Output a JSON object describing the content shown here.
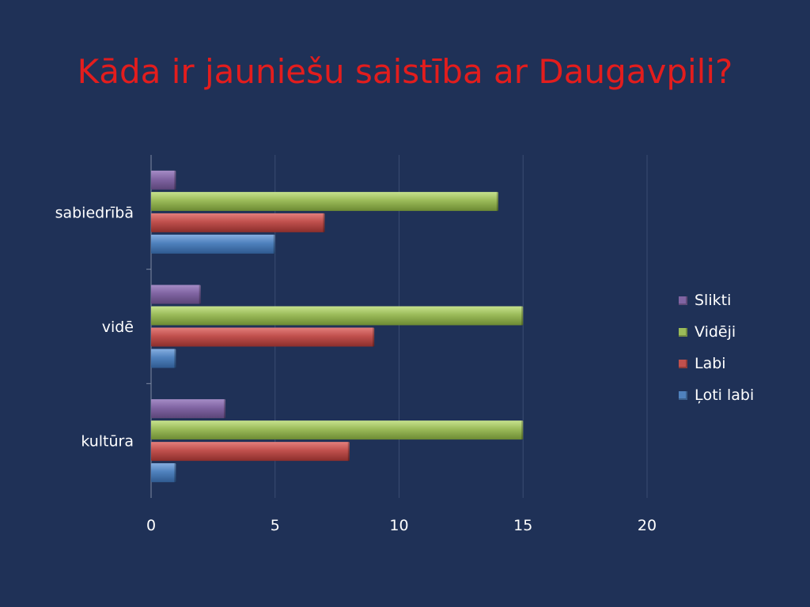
{
  "title": "Kāda ir jauniešu saistība ar Daugavpili?",
  "chart_data": {
    "type": "bar",
    "orientation": "horizontal",
    "categories": [
      "sabiedrībā",
      "vidē",
      "kultūra"
    ],
    "series": [
      {
        "name": "Slikti",
        "values": [
          1,
          2,
          3
        ],
        "color": "#8064a2"
      },
      {
        "name": "Vidēji",
        "values": [
          14,
          15,
          15
        ],
        "color": "#9bbb59"
      },
      {
        "name": "Labi",
        "values": [
          7,
          9,
          8
        ],
        "color": "#c0504d"
      },
      {
        "name": "Ļoti labi",
        "values": [
          5,
          1,
          1
        ],
        "color": "#4f81bd"
      }
    ],
    "xticks": [
      "0",
      "5",
      "10",
      "15",
      "20"
    ],
    "xlim": [
      0,
      20
    ],
    "grid": true,
    "legend_position": "right"
  }
}
